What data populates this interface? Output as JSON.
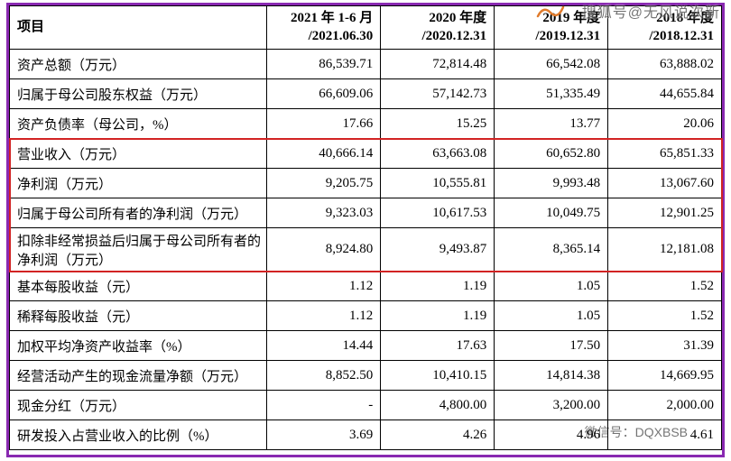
{
  "table": {
    "columns": [
      "项目",
      "2021 年 1-6 月\n/2021.06.30",
      "2020 年度\n/2020.12.31",
      "2019 年度\n/2019.12.31",
      "2018 年度\n/2018.12.31"
    ],
    "rows": [
      {
        "label": "资产总额（万元）",
        "v": [
          "86,539.71",
          "72,814.48",
          "66,542.08",
          "63,888.02"
        ],
        "hl": false
      },
      {
        "label": "归属于母公司股东权益（万元）",
        "v": [
          "66,609.06",
          "57,142.73",
          "51,335.49",
          "44,655.84"
        ],
        "hl": false
      },
      {
        "label": "资产负债率（母公司，%）",
        "v": [
          "17.66",
          "15.25",
          "13.77",
          "20.06"
        ],
        "hl": false
      },
      {
        "label": "营业收入（万元）",
        "v": [
          "40,666.14",
          "63,663.08",
          "60,652.80",
          "65,851.33"
        ],
        "hl": true
      },
      {
        "label": "净利润（万元）",
        "v": [
          "9,205.75",
          "10,555.81",
          "9,993.48",
          "13,067.60"
        ],
        "hl": true
      },
      {
        "label": "归属于母公司所有者的净利润（万元）",
        "v": [
          "9,323.03",
          "10,617.53",
          "10,049.75",
          "12,901.25"
        ],
        "hl": true
      },
      {
        "label": "扣除非经常损益后归属于母公司所有者的净利润（万元）",
        "v": [
          "8,924.80",
          "9,493.87",
          "8,365.14",
          "12,181.08"
        ],
        "hl": true,
        "tall": true
      },
      {
        "label": "基本每股收益（元）",
        "v": [
          "1.12",
          "1.19",
          "1.05",
          "1.52"
        ],
        "hl": false
      },
      {
        "label": "稀释每股收益（元）",
        "v": [
          "1.12",
          "1.19",
          "1.05",
          "1.52"
        ],
        "hl": false
      },
      {
        "label": "加权平均净资产收益率（%）",
        "v": [
          "14.44",
          "17.63",
          "17.50",
          "31.39"
        ],
        "hl": false
      },
      {
        "label": "经营活动产生的现金流量净额（万元）",
        "v": [
          "8,852.50",
          "10,410.15",
          "14,814.38",
          "14,669.95"
        ],
        "hl": false
      },
      {
        "label": "现金分红（万元）",
        "v": [
          "-",
          "4,800.00",
          "3,200.00",
          "2,000.00"
        ],
        "hl": false
      },
      {
        "label": "研发投入占营业收入的比例（%）",
        "v": [
          "3.69",
          "4.26",
          "4.96",
          "4.61"
        ],
        "hl": false
      }
    ],
    "border_color": "#000000",
    "highlight_border_color": "#d22323",
    "outer_highlight_color": "#8929b1",
    "background_color": "#ffffff"
  },
  "watermarks": {
    "sohu": "搜狐号@无风说次新",
    "wechat": "微信号：DQXBSB"
  }
}
